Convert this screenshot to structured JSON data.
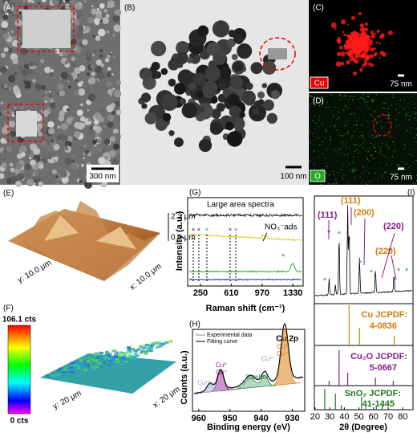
{
  "panels": {
    "A": {
      "label": "(A)",
      "scale": "300 nm"
    },
    "B": {
      "label": "(B)",
      "scale": "100 nm"
    },
    "C": {
      "label": "(C)",
      "element": "Cu",
      "scale": "75 nm"
    },
    "D": {
      "label": "(D)",
      "element": "O",
      "scale": "75 nm"
    },
    "E": {
      "label": "(E)",
      "z_top": "2.3 μm",
      "z_bottom": "0.0 μm",
      "y_axis": "y: 10.0 μm",
      "x_axis": "x: 10.0 μm"
    },
    "F": {
      "label": "(F)",
      "max": "106.1 cts",
      "min": "0 cts",
      "y_axis": "y: 20 μm",
      "x_axis": "x: 20 μm"
    },
    "G": {
      "label": "(G)",
      "title": "Large area spectra",
      "annotation": "NO₃⁻ads",
      "marker": "*",
      "ylabel": "Intensity (a.u.)",
      "xlabel": "Raman shift (cm⁻¹)",
      "xticks": [
        250,
        610,
        970,
        1330
      ],
      "xlim": [
        100,
        1450
      ]
    },
    "H": {
      "label": "(H)",
      "title": "Cu 2p",
      "legend": [
        "Experimental data",
        "Fitting curve"
      ],
      "cu0": "Cu⁰",
      "cu1": "Cu⁺",
      "satellite": "Satellite",
      "cu2": "Cu²⁺",
      "ylabel": "Counts (a.u.)",
      "xlabel": "Binding energy (eV)",
      "xticks": [
        960,
        950,
        940,
        930
      ],
      "xlim": [
        962,
        926
      ]
    },
    "I": {
      "label": "(I)",
      "planes": [
        "(111)",
        "(111)",
        "(200)",
        "(220)",
        "(220)"
      ],
      "marker": "*",
      "refs": [
        {
          "name": "Cu JCPDF:",
          "code": "4-0836"
        },
        {
          "name": "Cu₂O JCPDF:",
          "code": "5-0667"
        },
        {
          "name": "SnO₂ JCPDF:",
          "code": "41-1445"
        }
      ],
      "xlabel": "2θ (Degree)",
      "xticks": [
        20,
        30,
        40,
        50,
        60,
        70,
        80
      ],
      "xlim": [
        19.5,
        87
      ]
    }
  }
}
